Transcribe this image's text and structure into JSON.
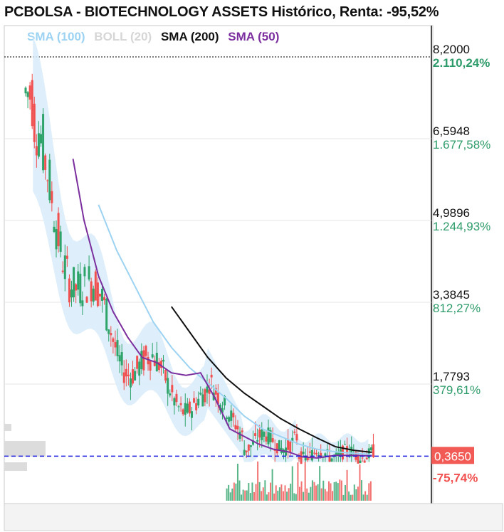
{
  "title": "PCBOLSA - BIOTECHNOLOGY ASSETS Histórico, Renta: -95,52%",
  "legend": [
    {
      "label": "SMA (100)",
      "color": "#9dd3f2"
    },
    {
      "label": "BOLL (20)",
      "color": "#d6d6d6"
    },
    {
      "label": "SMA (200)",
      "color": "#111111"
    },
    {
      "label": "SMA (50)",
      "color": "#7b2f9e"
    }
  ],
  "colors": {
    "up": "#2ea36a",
    "down": "#f0504f",
    "band": "#d8ecfa",
    "grid": "#e6e6e6",
    "price_tag": "#f25a55",
    "current_line": "#1f1fe0"
  },
  "chart_data": {
    "type": "line",
    "title": "PCBOLSA - BIOTECHNOLOGY ASSETS Histórico, Renta: -95,52%",
    "xlabel": "",
    "ylabel": "",
    "ylim": [
      0.25,
      8.6
    ],
    "grid": true,
    "legend_position": "top-left",
    "y_ticks": [
      {
        "price": "8,2000",
        "pct": "2.110,24%",
        "value": 8.2
      },
      {
        "price": "6,5948",
        "pct": "1.677,58%",
        "value": 6.5948
      },
      {
        "price": "4,9896",
        "pct": "1.244,93%",
        "value": 4.9896
      },
      {
        "price": "3,3845",
        "pct": "812,27%",
        "value": 3.3845
      },
      {
        "price": "1,7793",
        "pct": "379,61%",
        "value": 1.7793
      }
    ],
    "current": {
      "price": "0,3650",
      "pct": "-75,74%",
      "value": 0.365
    },
    "max_line": 8.2,
    "series": [
      {
        "name": "SMA (100)",
        "x": [
          0.2,
          0.25,
          0.3,
          0.35,
          0.4,
          0.45,
          0.5,
          0.55,
          0.6,
          0.65,
          0.7,
          0.75,
          0.8,
          0.85,
          0.9,
          0.95
        ],
        "values": [
          5.3,
          4.4,
          3.7,
          3.0,
          2.5,
          2.1,
          1.8,
          1.5,
          1.15,
          0.9,
          0.75,
          0.6,
          0.5,
          0.45,
          0.42,
          0.4
        ]
      },
      {
        "name": "SMA (200)",
        "x": [
          0.4,
          0.45,
          0.5,
          0.55,
          0.6,
          0.65,
          0.7,
          0.75,
          0.8,
          0.85,
          0.9,
          0.95
        ],
        "values": [
          3.3,
          2.8,
          2.3,
          1.9,
          1.6,
          1.35,
          1.1,
          0.9,
          0.72,
          0.55,
          0.48,
          0.44
        ]
      },
      {
        "name": "SMA (50)",
        "x": [
          0.13,
          0.16,
          0.2,
          0.24,
          0.28,
          0.32,
          0.36,
          0.4,
          0.44,
          0.48,
          0.52,
          0.56,
          0.6,
          0.64,
          0.68,
          0.72,
          0.76,
          0.8,
          0.85,
          0.9,
          0.95
        ],
        "values": [
          6.2,
          5.0,
          3.9,
          3.2,
          2.7,
          2.3,
          2.2,
          2.0,
          1.95,
          2.0,
          1.5,
          0.9,
          0.75,
          0.6,
          0.5,
          0.45,
          0.35,
          0.33,
          0.38,
          0.38,
          0.37
        ]
      }
    ]
  }
}
